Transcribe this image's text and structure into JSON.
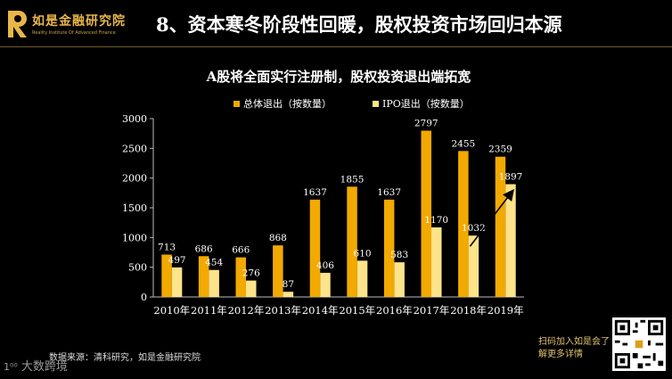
{
  "header": {
    "org_name": "如是金融研究院",
    "org_sub": "Reality Institute Of Advanced Finance",
    "title": "8、资本寒冬阶段性回暖，股权投资市场回归本源"
  },
  "chart_data": {
    "type": "bar",
    "title": "A股将全面实行注册制，股权投资退出端拓宽",
    "categories": [
      "2010年",
      "2011年",
      "2012年",
      "2013年",
      "2014年",
      "2015年",
      "2016年",
      "2017年",
      "2018年",
      "2019年"
    ],
    "series": [
      {
        "name": "总体退出（按数量）",
        "color": "#f2a900",
        "values": [
          713,
          686,
          666,
          868,
          1637,
          1855,
          1637,
          2797,
          2455,
          2359
        ]
      },
      {
        "name": "IPO退出（按数量）",
        "color": "#fde38a",
        "values": [
          497,
          454,
          276,
          87,
          406,
          610,
          583,
          1170,
          1032,
          1897
        ]
      }
    ],
    "ylim": [
      0,
      3000
    ],
    "yticks": [
      0,
      500,
      1000,
      1500,
      2000,
      2500,
      3000
    ],
    "grid": false,
    "legend": "top-center",
    "annotation": "arrow from 2018 IPO to 2019 IPO"
  },
  "footer": {
    "source": "数据来源：清科研究，如是金融研究院",
    "watermark": "大数跨境",
    "qr_text": "扫码加入如是会了解更多详情"
  }
}
